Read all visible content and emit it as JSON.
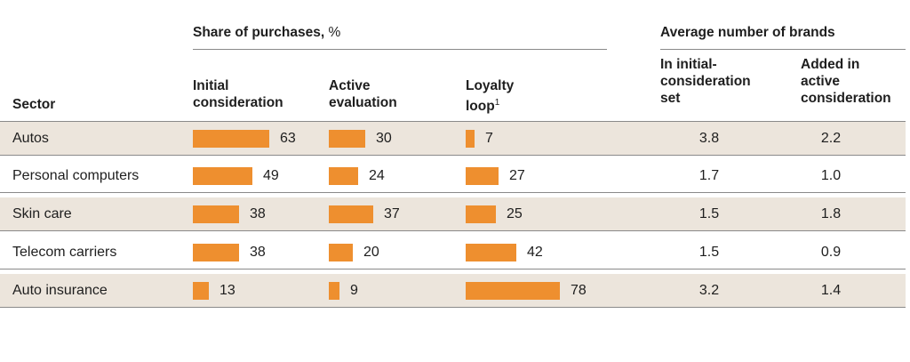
{
  "header": {
    "share_title": "Share of purchases,",
    "share_unit": " %",
    "brands_title": "Average number of brands",
    "sector_label": "Sector",
    "col_initial": "Initial\nconsideration",
    "col_active": "Active\nevaluation",
    "col_loyalty": "Loyalty\nloop",
    "col_loyalty_sup": "1",
    "col_set": "In initial-\nconsideration\nset",
    "col_added": "Added in\nactive\nconsideration"
  },
  "colors": {
    "bar": "#ee8f2f",
    "shade": "#ece5dc"
  },
  "chart_data": {
    "type": "table",
    "columns": [
      "Sector",
      "Initial consideration",
      "Active evaluation",
      "Loyalty loop",
      "In initial-consideration set",
      "Added in active consideration"
    ],
    "rows": [
      {
        "sector": "Autos",
        "initial": 63,
        "active": 30,
        "loyalty": 7,
        "set": "3.8",
        "added": "2.2"
      },
      {
        "sector": "Personal computers",
        "initial": 49,
        "active": 24,
        "loyalty": 27,
        "set": "1.7",
        "added": "1.0"
      },
      {
        "sector": "Skin care",
        "initial": 38,
        "active": 37,
        "loyalty": 25,
        "set": "1.5",
        "added": "1.8"
      },
      {
        "sector": "Telecom carriers",
        "initial": 38,
        "active": 20,
        "loyalty": 42,
        "set": "1.5",
        "added": "0.9"
      },
      {
        "sector": "Auto insurance",
        "initial": 13,
        "active": 9,
        "loyalty": 78,
        "set": "3.2",
        "added": "1.4"
      }
    ]
  }
}
